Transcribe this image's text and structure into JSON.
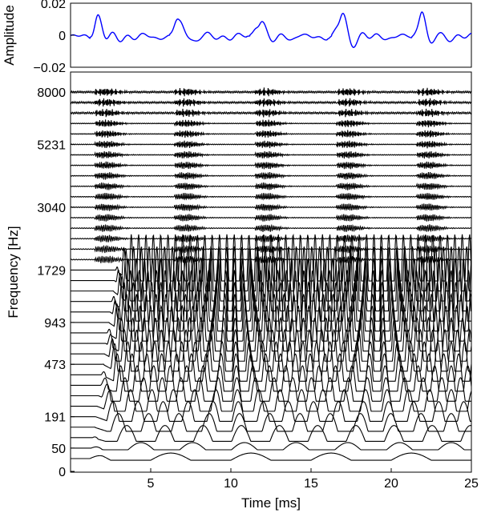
{
  "chart_data": [
    {
      "type": "line",
      "name": "waveform",
      "ylabel": "Amplitude",
      "xlim": [
        0,
        25
      ],
      "ylim": [
        -0.02,
        0.02
      ],
      "yticks": [
        0.02,
        0,
        -0.02
      ],
      "ytick_labels": [
        "0.02",
        "0",
        "−0.02"
      ],
      "line_color": "#0000ff",
      "pulse_times_ms": [
        1.8,
        6.8,
        11.8,
        16.9,
        21.9
      ],
      "pulse_peak": 0.018,
      "grid": false,
      "legend": "none"
    },
    {
      "type": "line",
      "name": "filterbank",
      "xlabel": "Time [ms]",
      "ylabel": "Frequency [Hz]",
      "xlim": [
        0,
        25
      ],
      "xticks": [
        5,
        10,
        15,
        20,
        25
      ],
      "xtick_labels": [
        "5",
        "10",
        "15",
        "20",
        "25"
      ],
      "ytick_labels": [
        "8000",
        "5231",
        "3040",
        "1729",
        "943",
        "473",
        "191",
        "50",
        "0"
      ],
      "ytick_channels": [
        35,
        30,
        24,
        18,
        13,
        9,
        4,
        1,
        0
      ],
      "channel_count": 36,
      "line_color": "#000000",
      "grid": false,
      "legend": "none"
    }
  ]
}
